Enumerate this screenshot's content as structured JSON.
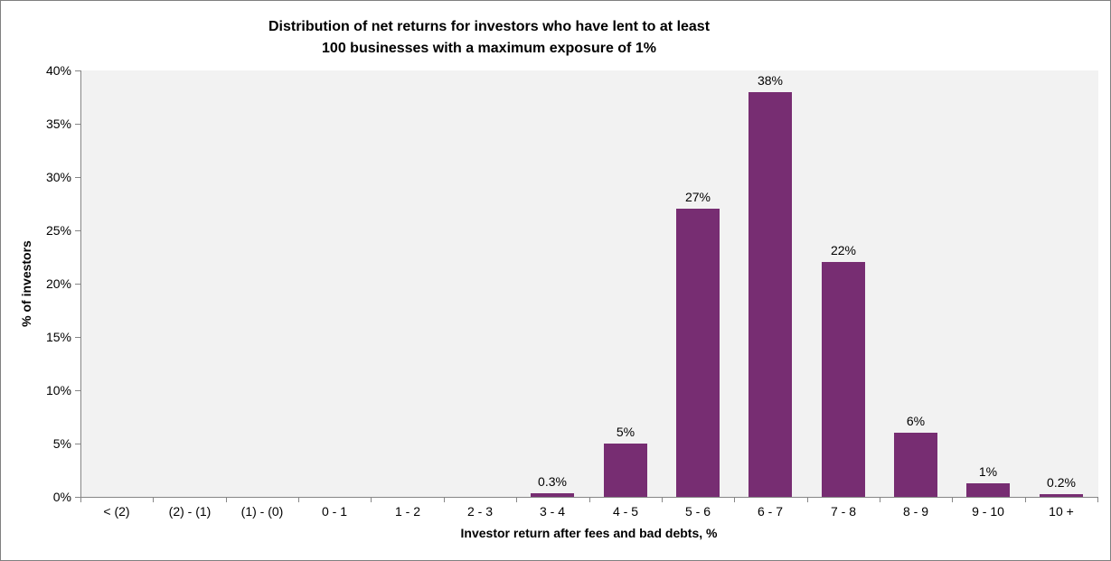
{
  "window": {
    "background_color": "#ffffff",
    "border_color": "#808080"
  },
  "chart_data": {
    "type": "bar",
    "title_line1": "Distribution of net returns for investors who have lent to at least",
    "title_line2": "100 businesses with a maximum exposure of 1%",
    "xlabel": "Investor return after fees and bad debts, %",
    "ylabel": "% of investors",
    "categories": [
      "< (2)",
      "(2) - (1)",
      "(1) - (0)",
      "0 - 1",
      "1 - 2",
      "2 - 3",
      "3 - 4",
      "4 - 5",
      "5 - 6",
      "6 - 7",
      "7 - 8",
      "8 - 9",
      "9 - 10",
      "10 +"
    ],
    "values": [
      0,
      0,
      0,
      0,
      0,
      0,
      0.3,
      5,
      27,
      38,
      22,
      6,
      1.3,
      0.25
    ],
    "bar_labels": [
      "",
      "",
      "",
      "",
      "",
      "",
      "0.3%",
      "5%",
      "27%",
      "38%",
      "22%",
      "6%",
      "1%",
      "0.2%"
    ],
    "y_ticks": [
      "0%",
      "5%",
      "10%",
      "15%",
      "20%",
      "25%",
      "30%",
      "35%",
      "40%"
    ],
    "ylim": [
      0,
      40
    ],
    "grid": false,
    "legend": "none",
    "bar_color": "#772D72",
    "plot_bg_color": "#F2F2F2",
    "axis_color": "#868686",
    "text_color": "#000000"
  }
}
